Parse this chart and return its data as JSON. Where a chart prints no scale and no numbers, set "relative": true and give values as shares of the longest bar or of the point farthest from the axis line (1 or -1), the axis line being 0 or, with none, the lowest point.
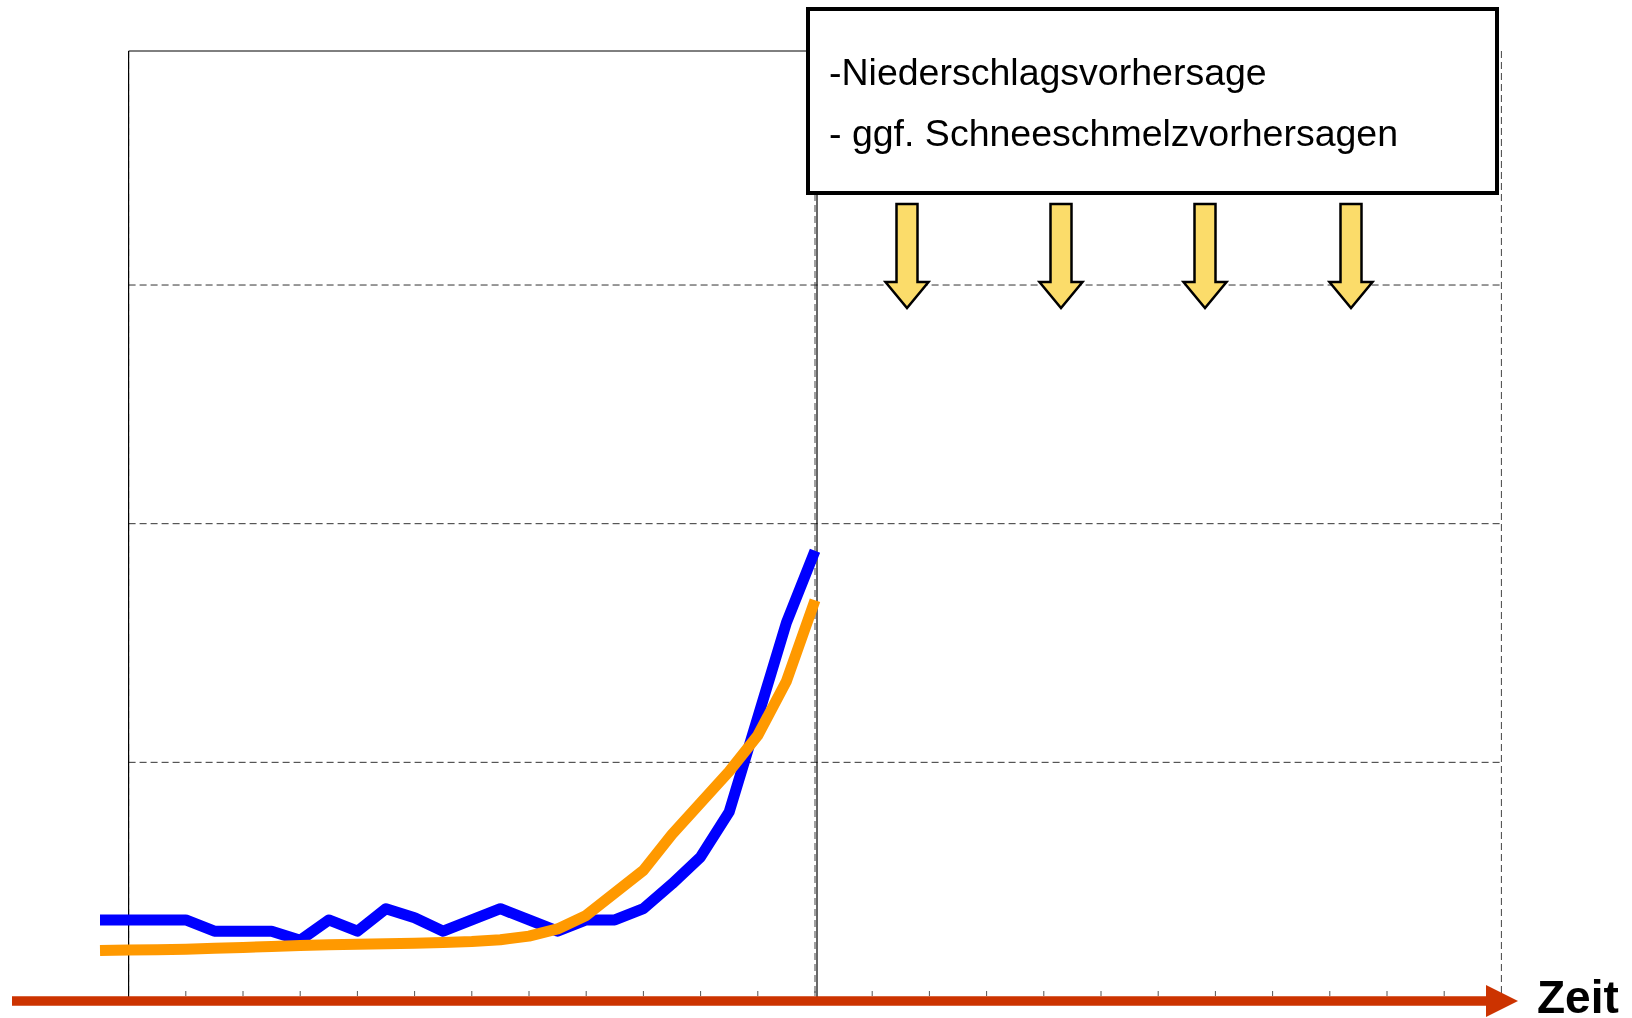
{
  "chart_data": {
    "type": "line",
    "xlabel": "Zeit",
    "relative": true,
    "grid": "x",
    "categories": [
      null,
      null,
      null,
      null,
      null,
      null,
      null,
      null,
      null,
      null,
      null,
      null,
      null,
      null,
      null,
      null,
      null,
      null,
      null,
      null,
      null,
      null,
      null,
      null,
      null,
      null,
      null,
      null,
      null,
      null,
      null,
      null,
      null,
      null,
      null,
      null,
      null,
      null,
      null,
      null,
      null,
      null,
      null,
      null,
      null,
      null,
      null,
      null,
      null,
      null
    ],
    "series": [
      {
        "color": "#0000ff",
        "values": [
          0.18,
          0.18,
          0.18,
          0.18,
          0.155,
          0.155,
          0.155,
          0.135,
          0.18,
          0.155,
          0.205,
          0.185,
          0.155,
          0.18,
          0.205,
          0.18,
          0.155,
          0.18,
          0.18,
          0.205,
          0.26,
          0.32,
          0.42,
          0.63,
          0.84,
          1,
          null,
          null,
          null,
          null,
          null,
          null,
          null,
          null,
          null,
          null,
          null,
          null,
          null,
          null,
          null,
          null,
          null,
          null,
          null,
          null,
          null,
          null,
          null,
          null
        ]
      },
      {
        "color": "#ff9900",
        "values": [
          0.112,
          0.113,
          0.114,
          0.115,
          0.117,
          0.119,
          0.121,
          0.123,
          0.125,
          0.126,
          0.127,
          0.128,
          0.13,
          0.132,
          0.136,
          0.144,
          0.16,
          0.19,
          0.24,
          0.29,
          0.37,
          0.44,
          0.51,
          0.59,
          0.71,
          0.89,
          null,
          null,
          null,
          null,
          null,
          null,
          null,
          null,
          null,
          null,
          null,
          null,
          null,
          null,
          null,
          null,
          null,
          null,
          null,
          null,
          null,
          null,
          null,
          null
        ]
      }
    ],
    "ref_lines": [
      {
        "axis": "y",
        "value": 0.53,
        "color": "#333333",
        "line_style": "dashed"
      },
      {
        "axis": "y",
        "value": 1.06,
        "color": "#333333",
        "line_style": "dashed"
      },
      {
        "axis": "y",
        "value": 1.59,
        "color": "#333333",
        "line_style": "dashed"
      }
    ],
    "annotations": [
      "-Niederschlagsvorhersage",
      "- ggf. Schneeschmelzvorhersagen"
    ]
  }
}
